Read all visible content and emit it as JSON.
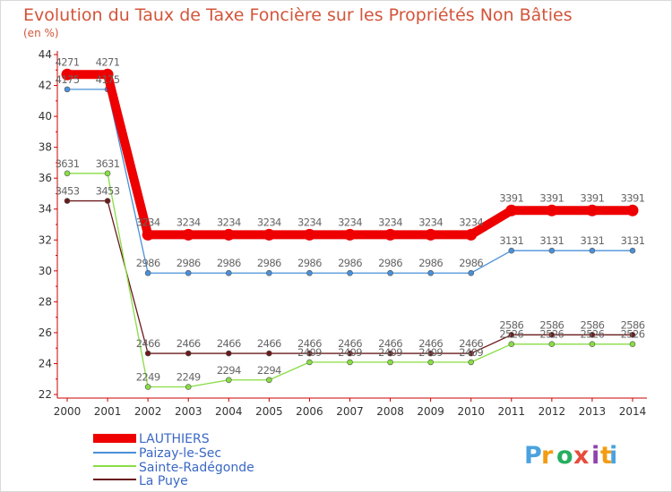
{
  "chart_data": {
    "type": "line",
    "title": "Evolution du Taux de Taxe Foncière sur les Propriétés Non Bâties",
    "subtitle": "(en %)",
    "xlabel": "",
    "ylabel": "",
    "x": [
      "2000",
      "2001",
      "2002",
      "2003",
      "2004",
      "2005",
      "2006",
      "2007",
      "2008",
      "2009",
      "2010",
      "2011",
      "2012",
      "2013",
      "2014"
    ],
    "ylim": [
      22,
      44
    ],
    "yticks": [
      22,
      24,
      26,
      28,
      30,
      32,
      34,
      36,
      38,
      40,
      42,
      44
    ],
    "grid": false,
    "legend_position": "bottom-left",
    "series": [
      {
        "name": "LAUTHIERS",
        "color": "#ee0000",
        "values": [
          42.71,
          42.71,
          32.34,
          32.34,
          32.34,
          32.34,
          32.34,
          32.34,
          32.34,
          32.34,
          32.34,
          33.91,
          33.91,
          33.91,
          33.91
        ],
        "labels": [
          "4271",
          "4271",
          "3234",
          "3234",
          "3234",
          "3234",
          "3234",
          "3234",
          "3234",
          "3234",
          "3234",
          "3391",
          "3391",
          "3391",
          "3391"
        ]
      },
      {
        "name": "Paizay-le-Sec",
        "color": "#4a90d9",
        "values": [
          41.75,
          41.75,
          29.86,
          29.86,
          29.86,
          29.86,
          29.86,
          29.86,
          29.86,
          29.86,
          29.86,
          31.31,
          31.31,
          31.31,
          31.31
        ],
        "labels": [
          "4175",
          "4175",
          "2986",
          "2986",
          "2986",
          "2986",
          "2986",
          "2986",
          "2986",
          "2986",
          "2986",
          "3131",
          "3131",
          "3131",
          "3131"
        ]
      },
      {
        "name": "Sainte-Radégonde",
        "color": "#88dd44",
        "values": [
          36.31,
          36.31,
          22.49,
          22.49,
          22.94,
          22.94,
          24.09,
          24.09,
          24.09,
          24.09,
          24.09,
          25.26,
          25.26,
          25.26,
          25.26
        ],
        "labels": [
          "3631",
          "3631",
          "2249",
          "2249",
          "2294",
          "2294",
          "2409",
          "2409",
          "2409",
          "2409",
          "2409",
          "2526",
          "2526",
          "2526",
          "2526"
        ]
      },
      {
        "name": "La Puye",
        "color": "#6b1a1a",
        "values": [
          34.53,
          34.53,
          24.66,
          24.66,
          24.66,
          24.66,
          24.66,
          24.66,
          24.66,
          24.66,
          24.66,
          25.86,
          25.86,
          25.86,
          25.86
        ],
        "labels": [
          "3453",
          "3453",
          "2466",
          "2466",
          "2466",
          "2466",
          "2466",
          "2466",
          "2466",
          "2466",
          "2466",
          "2586",
          "2586",
          "2586",
          "2586"
        ]
      }
    ]
  },
  "logo": {
    "letters": [
      "P",
      "r",
      "o",
      "x",
      "i",
      "t",
      "i"
    ],
    "colors": [
      "#4aa3df",
      "#f39c12",
      "#27ae60",
      "#e74c3c",
      "#8e44ad",
      "#f39c12",
      "#4aa3df"
    ]
  }
}
